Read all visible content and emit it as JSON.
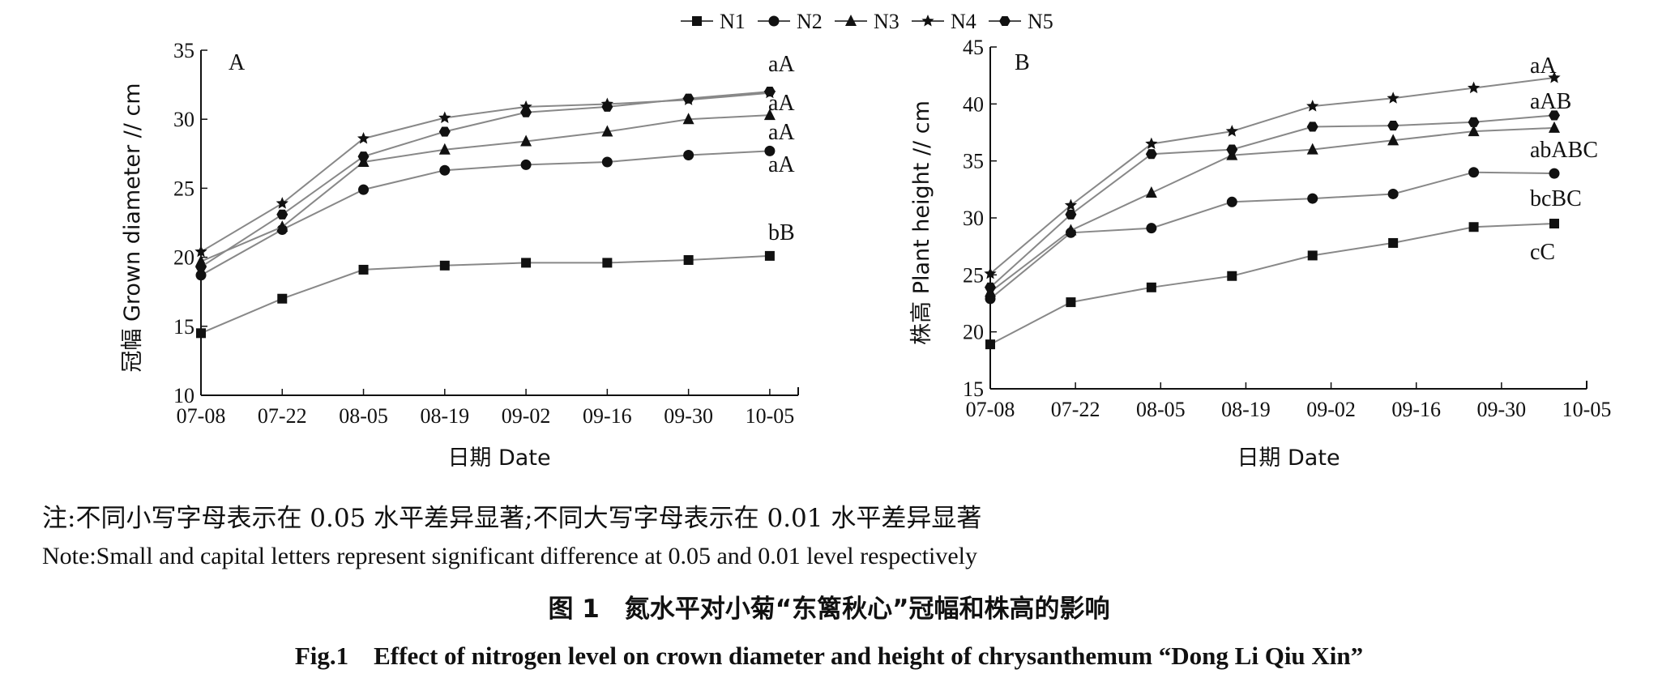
{
  "legend": [
    "N1",
    "N2",
    "N3",
    "N4",
    "N5"
  ],
  "chart_data": [
    {
      "type": "line",
      "panel": "A",
      "title": "",
      "ylabel": "冠幅 Grown diameter // cm",
      "xlabel": "日期 Date",
      "ylim": [
        10,
        35
      ],
      "yticks": [
        10,
        15,
        20,
        25,
        30,
        35
      ],
      "categories": [
        "07-08",
        "07-22",
        "08-05",
        "08-19",
        "09-02",
        "09-16",
        "09-30",
        "10-05"
      ],
      "grid": false,
      "series": [
        {
          "name": "N1",
          "marker": "square",
          "values": [
            14.5,
            17.0,
            19.1,
            19.4,
            19.6,
            19.6,
            19.8,
            20.1
          ],
          "sig": "bB"
        },
        {
          "name": "N2",
          "marker": "circle",
          "values": [
            18.7,
            22.0,
            24.9,
            26.3,
            26.7,
            26.9,
            27.4,
            27.7
          ],
          "sig": "aA"
        },
        {
          "name": "N3",
          "marker": "triangle",
          "values": [
            19.7,
            22.2,
            26.9,
            27.8,
            28.4,
            29.1,
            30.0,
            30.3
          ],
          "sig": "aA"
        },
        {
          "name": "N4",
          "marker": "star",
          "values": [
            20.4,
            23.9,
            28.6,
            30.1,
            30.9,
            31.1,
            31.4,
            31.9
          ],
          "sig": "aA"
        },
        {
          "name": "N5",
          "marker": "diamond",
          "values": [
            19.3,
            23.1,
            27.3,
            29.1,
            30.5,
            30.9,
            31.5,
            32.0
          ],
          "sig": "aA"
        }
      ],
      "sig_labels": [
        "aA",
        "aA",
        "aA",
        "aA",
        "bB"
      ]
    },
    {
      "type": "line",
      "panel": "B",
      "title": "",
      "ylabel": "株高 Plant height // cm",
      "xlabel": "日期 Date",
      "ylim": [
        15,
        45
      ],
      "yticks": [
        15,
        20,
        25,
        30,
        35,
        40,
        45
      ],
      "categories": [
        "07-08",
        "07-22",
        "08-05",
        "08-19",
        "09-02",
        "09-16",
        "09-30",
        "10-05"
      ],
      "grid": false,
      "series": [
        {
          "name": "N1",
          "marker": "square",
          "values": [
            18.9,
            22.6,
            23.9,
            24.9,
            26.7,
            27.8,
            29.2,
            29.5
          ],
          "sig": "cC"
        },
        {
          "name": "N2",
          "marker": "circle",
          "values": [
            22.9,
            28.7,
            29.1,
            31.4,
            31.7,
            32.1,
            34.0,
            33.9
          ],
          "sig": "bcBC"
        },
        {
          "name": "N3",
          "marker": "triangle",
          "values": [
            23.5,
            28.9,
            32.2,
            35.5,
            36.0,
            36.8,
            37.6,
            37.9
          ],
          "sig": "abABC"
        },
        {
          "name": "N4",
          "marker": "star",
          "values": [
            25.1,
            31.1,
            36.5,
            37.6,
            39.8,
            40.5,
            41.4,
            42.3
          ],
          "sig": "aA"
        },
        {
          "name": "N5",
          "marker": "diamond",
          "values": [
            23.9,
            30.3,
            35.6,
            36.0,
            38.0,
            38.1,
            38.4,
            39.0
          ],
          "sig": "aAB"
        }
      ],
      "sig_labels": [
        "aA",
        "aAB",
        "abABC",
        "bcBC",
        "cC"
      ]
    }
  ],
  "note_cn": "注:不同小写字母表示在 0.05 水平差异显著;不同大写字母表示在 0.01 水平差异显著",
  "note_en": "Note:Small and capital letters represent significant difference at 0.05 and 0.01 level respectively",
  "caption_cn": "图 1　氮水平对小菊“东篱秋心”冠幅和株高的影响",
  "caption_en": "Fig.1　Effect of nitrogen level on crown diameter and height of chrysanthemum “Dong Li Qiu Xin”"
}
